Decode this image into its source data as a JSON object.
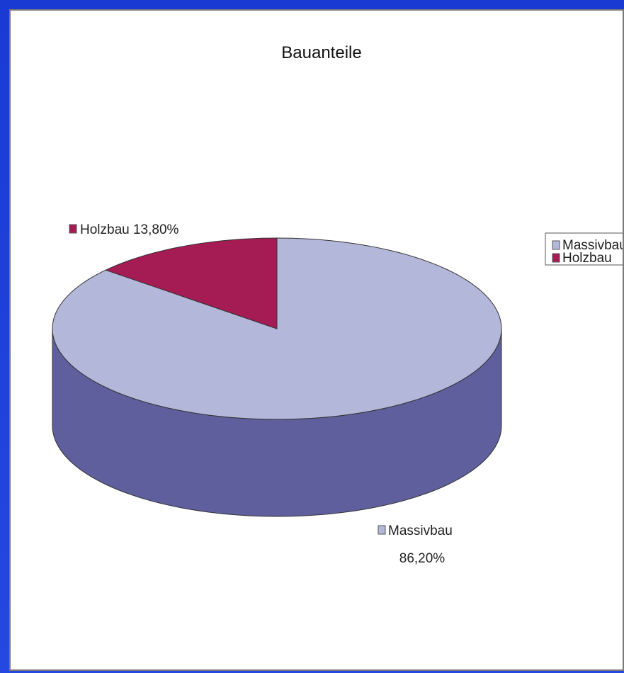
{
  "chart_data": {
    "type": "pie",
    "title": "Bauanteile",
    "categories": [
      "Massivbau",
      "Holzbau"
    ],
    "values": [
      86.2,
      13.8
    ],
    "data_labels": [
      {
        "name": "Massivbau",
        "value": "86,20%"
      },
      {
        "name": "Holzbau",
        "value": "13,80%"
      }
    ],
    "colors": {
      "Massivbau": {
        "top": "#b3b7d9",
        "side": "#5e5f9c"
      },
      "Holzbau": {
        "top": "#a51c55",
        "side": "#7a1240"
      }
    },
    "legend": {
      "position": "right",
      "entries": [
        "Massivbau",
        "Holzbau"
      ]
    },
    "style": "3d"
  }
}
